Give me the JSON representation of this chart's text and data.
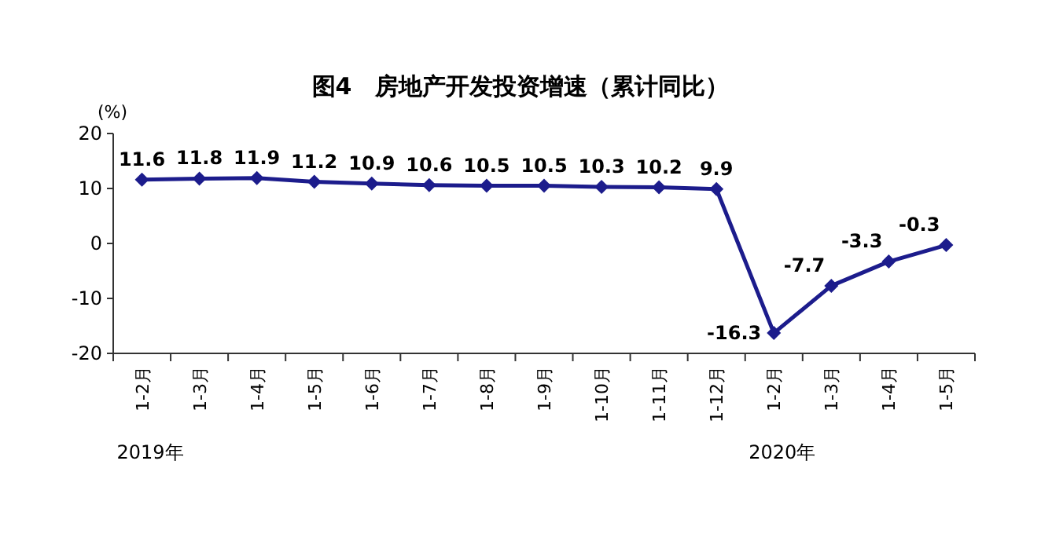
{
  "chart_data": {
    "type": "line",
    "title": "图4　房地产开发投资增速（累计同比）",
    "ylabel": "(%)",
    "categories": [
      "1-2月",
      "1-3月",
      "1-4月",
      "1-5月",
      "1-6月",
      "1-7月",
      "1-8月",
      "1-9月",
      "1-10月",
      "1-11月",
      "1-12月",
      "1-2月",
      "1-3月",
      "1-4月",
      "1-5月"
    ],
    "series": [
      {
        "color": "#1c1c8c",
        "values": [
          11.6,
          11.8,
          11.9,
          11.2,
          10.9,
          10.6,
          10.5,
          10.5,
          10.3,
          10.2,
          9.9,
          -16.3,
          -7.7,
          -3.3,
          -0.3
        ]
      }
    ],
    "annotations": [
      "2019年",
      "2020年"
    ],
    "ylim": [
      -20,
      20
    ],
    "yticks": [
      -20,
      -10,
      0,
      10,
      20
    ],
    "data_labels": true,
    "marker": "diamond",
    "line_style": "solid",
    "grid": false
  }
}
